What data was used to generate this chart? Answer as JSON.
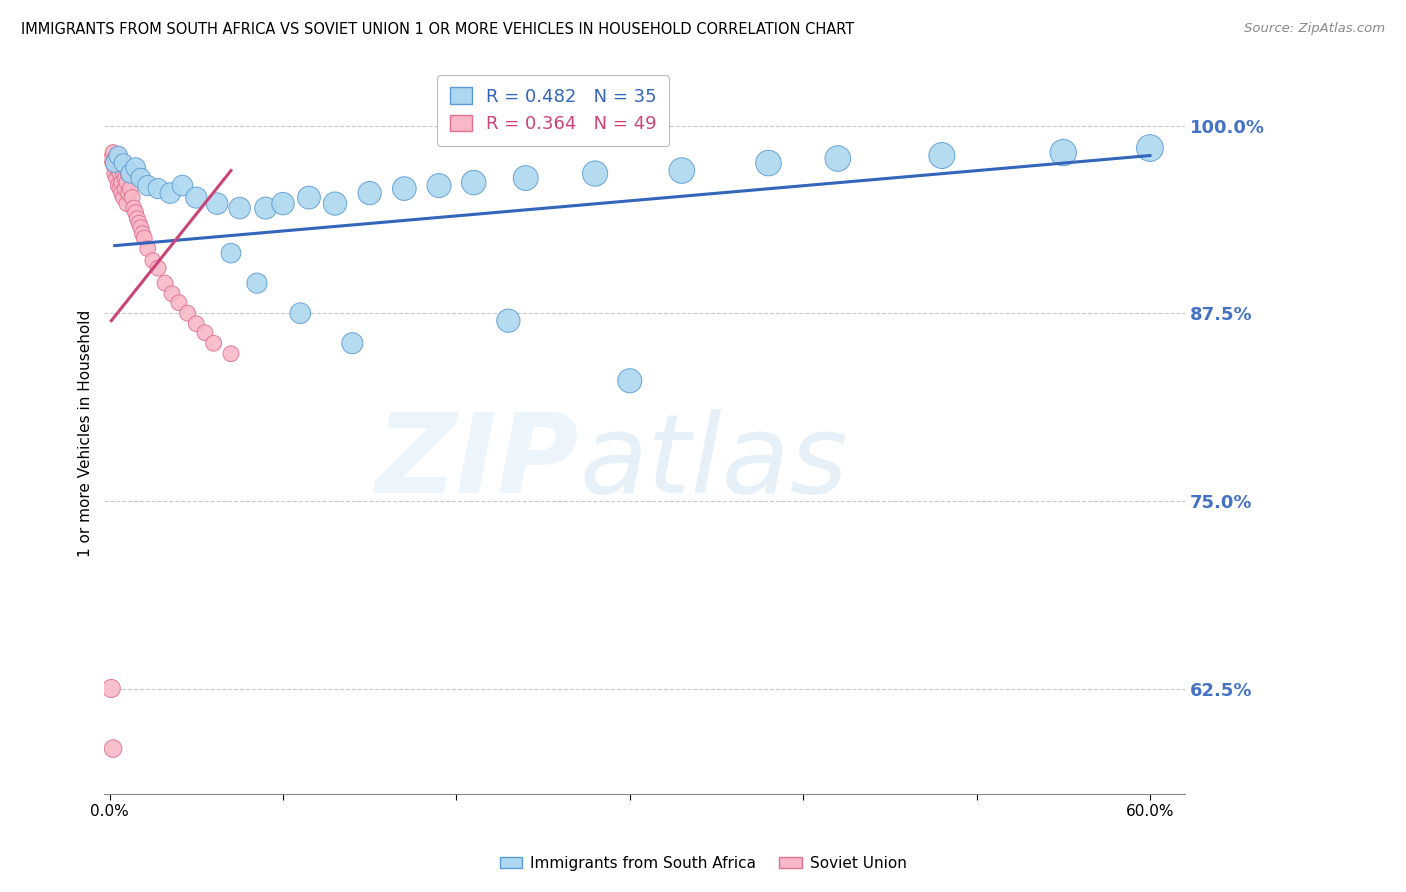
{
  "title": "IMMIGRANTS FROM SOUTH AFRICA VS SOVIET UNION 1 OR MORE VEHICLES IN HOUSEHOLD CORRELATION CHART",
  "source": "Source: ZipAtlas.com",
  "ylabel": "1 or more Vehicles in Household",
  "xlim": [
    -0.003,
    0.62
  ],
  "ylim": [
    0.555,
    1.035
  ],
  "yticks": [
    1.0,
    0.875,
    0.75,
    0.625
  ],
  "ytick_labels": [
    "100.0%",
    "87.5%",
    "75.0%",
    "62.5%"
  ],
  "xtick_pos": [
    0.0,
    0.1,
    0.2,
    0.3,
    0.4,
    0.5,
    0.6
  ],
  "xtick_labels": [
    "0.0%",
    "",
    "",
    "",
    "",
    "",
    "60.0%"
  ],
  "blue_color": "#add8f0",
  "blue_edge_color": "#5b9bd5",
  "blue_line_color": "#3366bb",
  "pink_color": "#f8b8c8",
  "pink_edge_color": "#e07090",
  "pink_line_color": "#cc4477",
  "legend_blue_label": "Immigrants from South Africa",
  "legend_pink_label": "Soviet Union",
  "R_blue": 0.482,
  "N_blue": 35,
  "R_pink": 0.364,
  "N_pink": 49,
  "ytick_color": "#4472c4",
  "grid_color": "#c8c8c8",
  "blue_scatter_x": [
    0.003,
    0.005,
    0.008,
    0.012,
    0.015,
    0.018,
    0.022,
    0.028,
    0.035,
    0.042,
    0.05,
    0.062,
    0.075,
    0.09,
    0.1,
    0.115,
    0.13,
    0.15,
    0.17,
    0.19,
    0.21,
    0.24,
    0.28,
    0.33,
    0.38,
    0.42,
    0.48,
    0.55,
    0.6,
    0.07,
    0.085,
    0.11,
    0.14,
    0.23,
    0.3
  ],
  "blue_scatter_y": [
    0.975,
    0.98,
    0.975,
    0.968,
    0.972,
    0.965,
    0.96,
    0.958,
    0.955,
    0.96,
    0.952,
    0.948,
    0.945,
    0.945,
    0.948,
    0.952,
    0.948,
    0.955,
    0.958,
    0.96,
    0.962,
    0.965,
    0.968,
    0.97,
    0.975,
    0.978,
    0.98,
    0.982,
    0.985,
    0.915,
    0.895,
    0.875,
    0.855,
    0.87,
    0.83
  ],
  "blue_scatter_size": [
    180,
    180,
    180,
    190,
    200,
    200,
    210,
    210,
    220,
    220,
    230,
    240,
    240,
    250,
    260,
    270,
    280,
    280,
    290,
    300,
    310,
    320,
    330,
    340,
    340,
    340,
    350,
    360,
    370,
    200,
    210,
    220,
    230,
    280,
    300
  ],
  "pink_scatter_x": [
    0.001,
    0.002,
    0.002,
    0.003,
    0.003,
    0.003,
    0.004,
    0.004,
    0.005,
    0.005,
    0.005,
    0.006,
    0.006,
    0.006,
    0.007,
    0.007,
    0.007,
    0.008,
    0.008,
    0.008,
    0.009,
    0.009,
    0.01,
    0.01,
    0.01,
    0.011,
    0.011,
    0.012,
    0.013,
    0.014,
    0.015,
    0.016,
    0.017,
    0.018,
    0.019,
    0.02,
    0.022,
    0.025,
    0.028,
    0.032,
    0.036,
    0.04,
    0.045,
    0.05,
    0.055,
    0.06,
    0.07,
    0.001,
    0.002
  ],
  "pink_scatter_y": [
    0.978,
    0.975,
    0.982,
    0.972,
    0.968,
    0.978,
    0.965,
    0.975,
    0.97,
    0.96,
    0.98,
    0.968,
    0.975,
    0.958,
    0.972,
    0.962,
    0.955,
    0.968,
    0.975,
    0.952,
    0.965,
    0.958,
    0.972,
    0.962,
    0.948,
    0.968,
    0.955,
    0.958,
    0.952,
    0.945,
    0.942,
    0.938,
    0.935,
    0.932,
    0.928,
    0.925,
    0.918,
    0.91,
    0.905,
    0.895,
    0.888,
    0.882,
    0.875,
    0.868,
    0.862,
    0.855,
    0.848,
    0.625,
    0.585
  ],
  "pink_scatter_size": [
    130,
    130,
    130,
    130,
    130,
    130,
    130,
    130,
    130,
    130,
    130,
    130,
    130,
    130,
    130,
    130,
    130,
    130,
    130,
    130,
    130,
    130,
    130,
    130,
    130,
    130,
    130,
    130,
    130,
    130,
    130,
    130,
    130,
    130,
    130,
    130,
    130,
    130,
    130,
    130,
    130,
    130,
    130,
    130,
    130,
    130,
    130,
    170,
    160
  ],
  "blue_trend_x": [
    0.003,
    0.6
  ],
  "blue_trend_y": [
    0.92,
    0.98
  ],
  "pink_trend_x": [
    0.001,
    0.07
  ],
  "pink_trend_y": [
    0.87,
    0.97
  ]
}
